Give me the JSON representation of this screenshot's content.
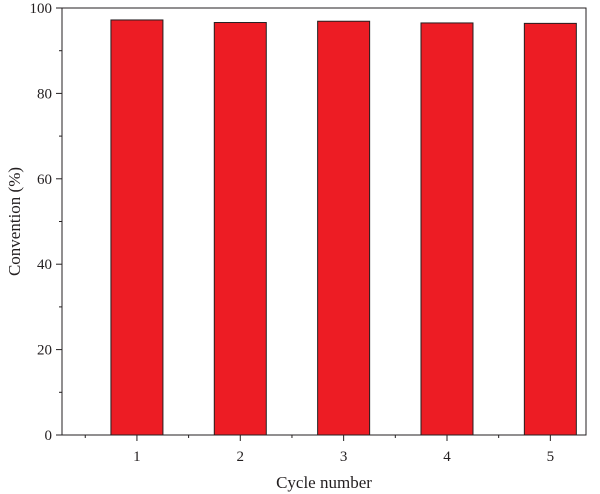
{
  "chart_data": {
    "type": "bar",
    "title": "",
    "xlabel": "Cycle number",
    "ylabel": "Convention (%)",
    "categories": [
      "1",
      "2",
      "3",
      "4",
      "5"
    ],
    "values": [
      97.2,
      96.6,
      96.9,
      96.5,
      96.4
    ],
    "ylim": [
      0,
      100
    ],
    "yticks": [
      "0",
      "20",
      "40",
      "60",
      "80",
      "100"
    ],
    "bar_color": "#ed1c24",
    "bar_edge_color": "#231f20",
    "grid": false,
    "legend": "none"
  }
}
